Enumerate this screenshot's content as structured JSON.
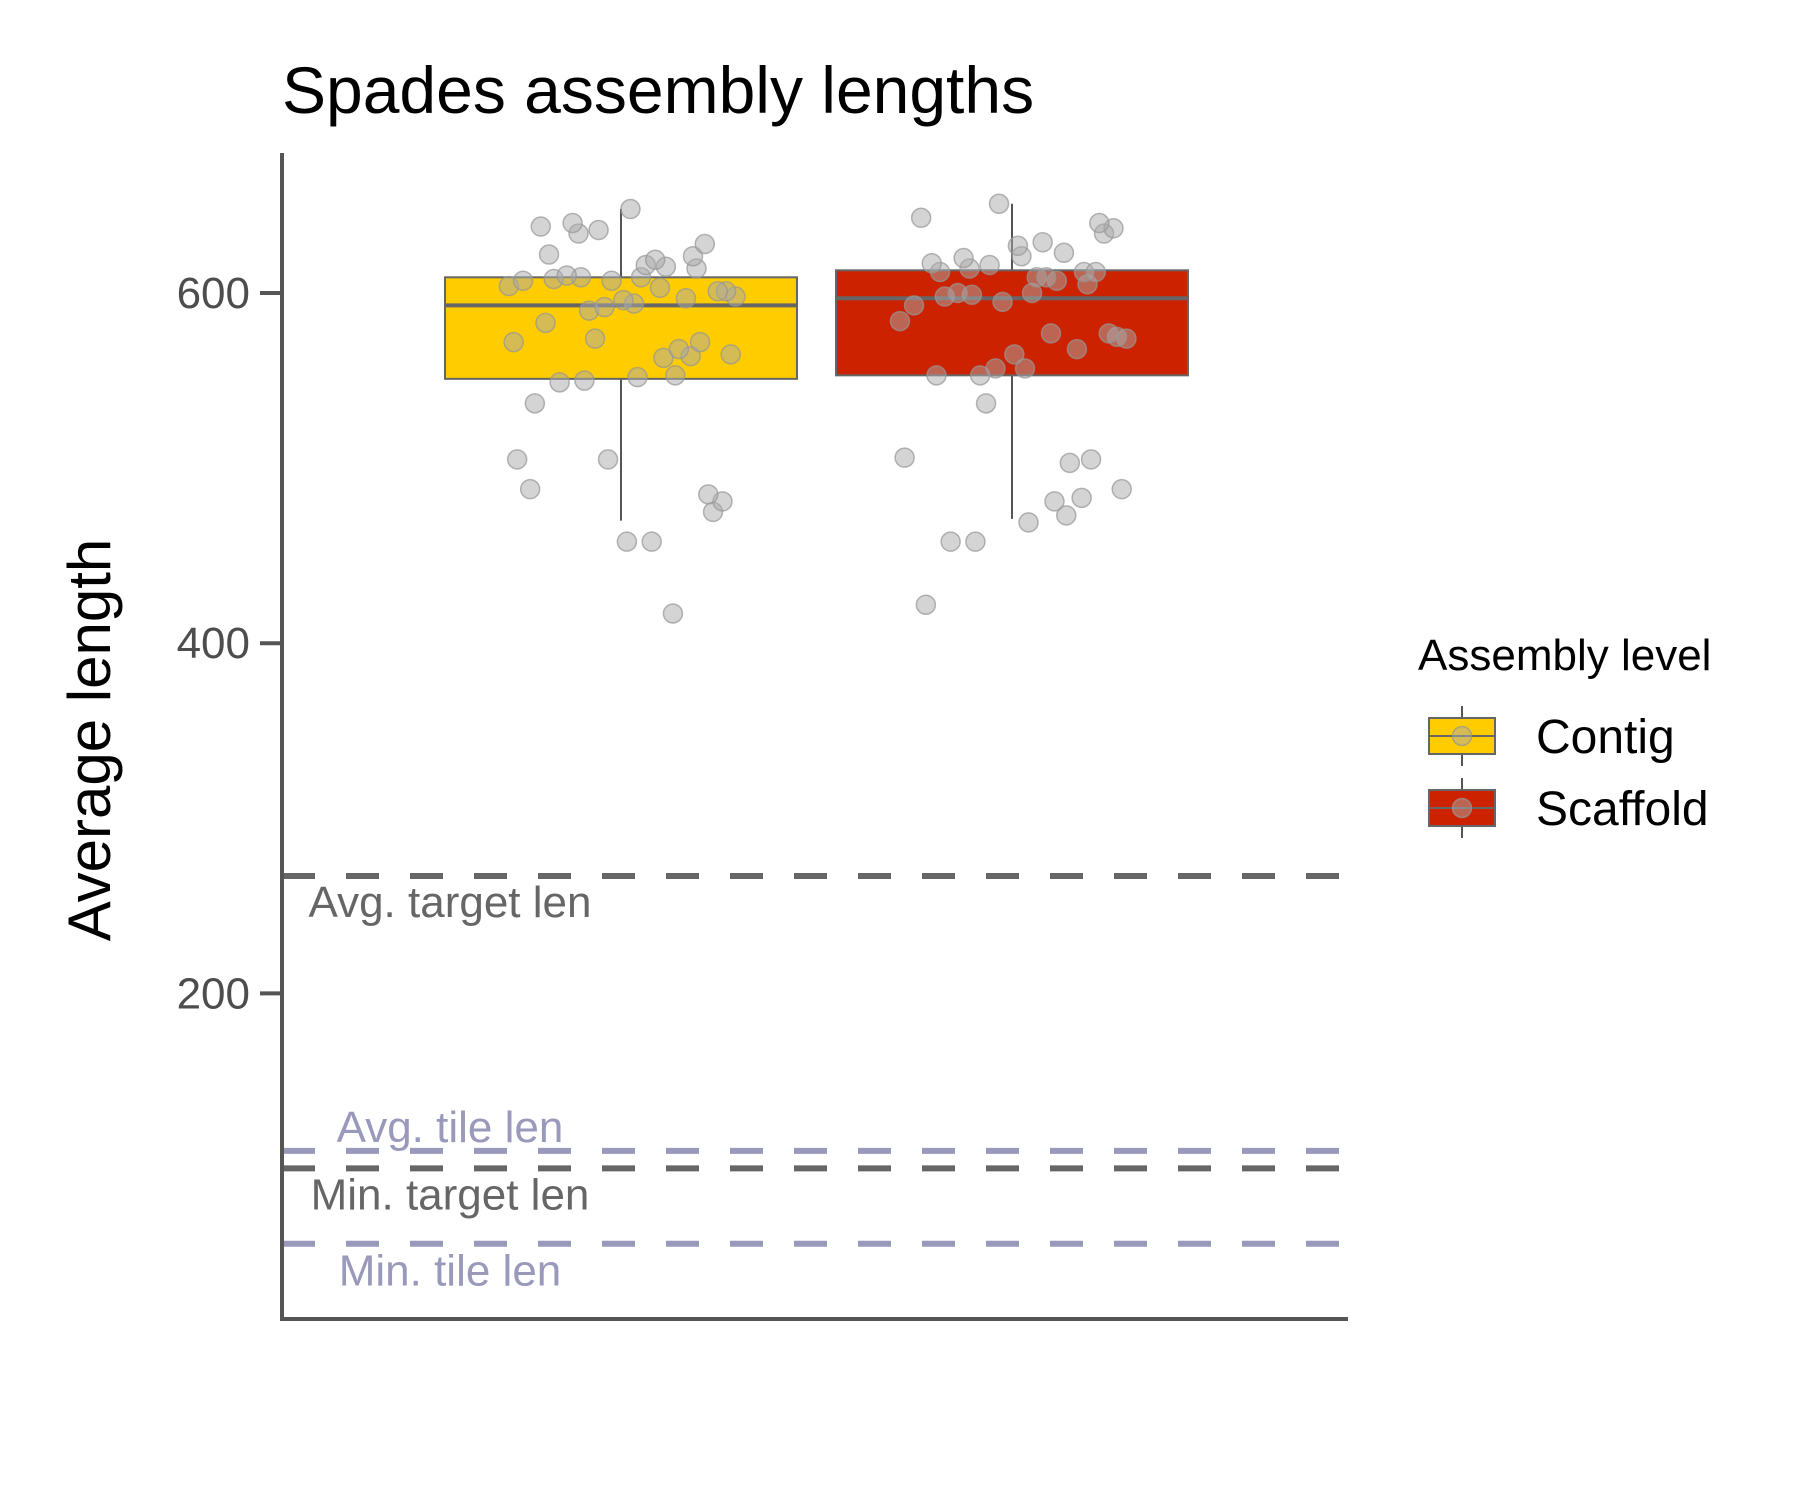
{
  "chart_data": {
    "type": "box",
    "title": "Spades assembly lengths",
    "ylabel": "Average length",
    "ylim": [
      14,
      680
    ],
    "yticks": [
      200,
      400,
      600
    ],
    "legend": {
      "title": "Assembly level",
      "position": "right",
      "items": [
        {
          "label": "Contig",
          "color": "#FFCC00"
        },
        {
          "label": "Scaffold",
          "color": "#CC2200"
        }
      ]
    },
    "boxes": [
      {
        "name": "Contig",
        "color": "#FFCC00",
        "q1": 551,
        "median": 593,
        "q3": 609,
        "whisker_low": 470,
        "whisker_high": 648,
        "points": [
          417,
          458,
          458,
          475,
          481,
          485,
          488,
          505,
          505,
          537,
          549,
          550,
          552,
          553,
          563,
          564,
          565,
          568,
          572,
          572,
          574,
          583,
          590,
          592,
          594,
          596,
          597,
          598,
          601,
          601,
          603,
          604,
          607,
          607,
          608,
          609,
          609,
          610,
          614,
          615,
          616,
          619,
          621,
          622,
          628,
          634,
          636,
          638,
          640,
          648
        ]
      },
      {
        "name": "Scaffold",
        "color": "#CC2200",
        "q1": 553,
        "median": 597,
        "q3": 613,
        "whisker_low": 471,
        "whisker_high": 651,
        "points": [
          422,
          458,
          458,
          469,
          473,
          481,
          483,
          488,
          503,
          505,
          506,
          537,
          553,
          553,
          557,
          557,
          565,
          568,
          574,
          575,
          577,
          577,
          584,
          593,
          595,
          598,
          599,
          600,
          600,
          605,
          607,
          609,
          609,
          612,
          612,
          612,
          614,
          616,
          617,
          620,
          621,
          623,
          627,
          629,
          634,
          637,
          640,
          643,
          651
        ]
      }
    ],
    "reference_lines": [
      {
        "label": "Avg. target len",
        "value": 267,
        "color": "#666666"
      },
      {
        "label": "Avg. tile len",
        "value": 110,
        "color": "#9999BB"
      },
      {
        "label": "Min. target len",
        "value": 100,
        "color": "#666666"
      },
      {
        "label": "Min. tile len",
        "value": 57,
        "color": "#9999BB"
      }
    ]
  }
}
